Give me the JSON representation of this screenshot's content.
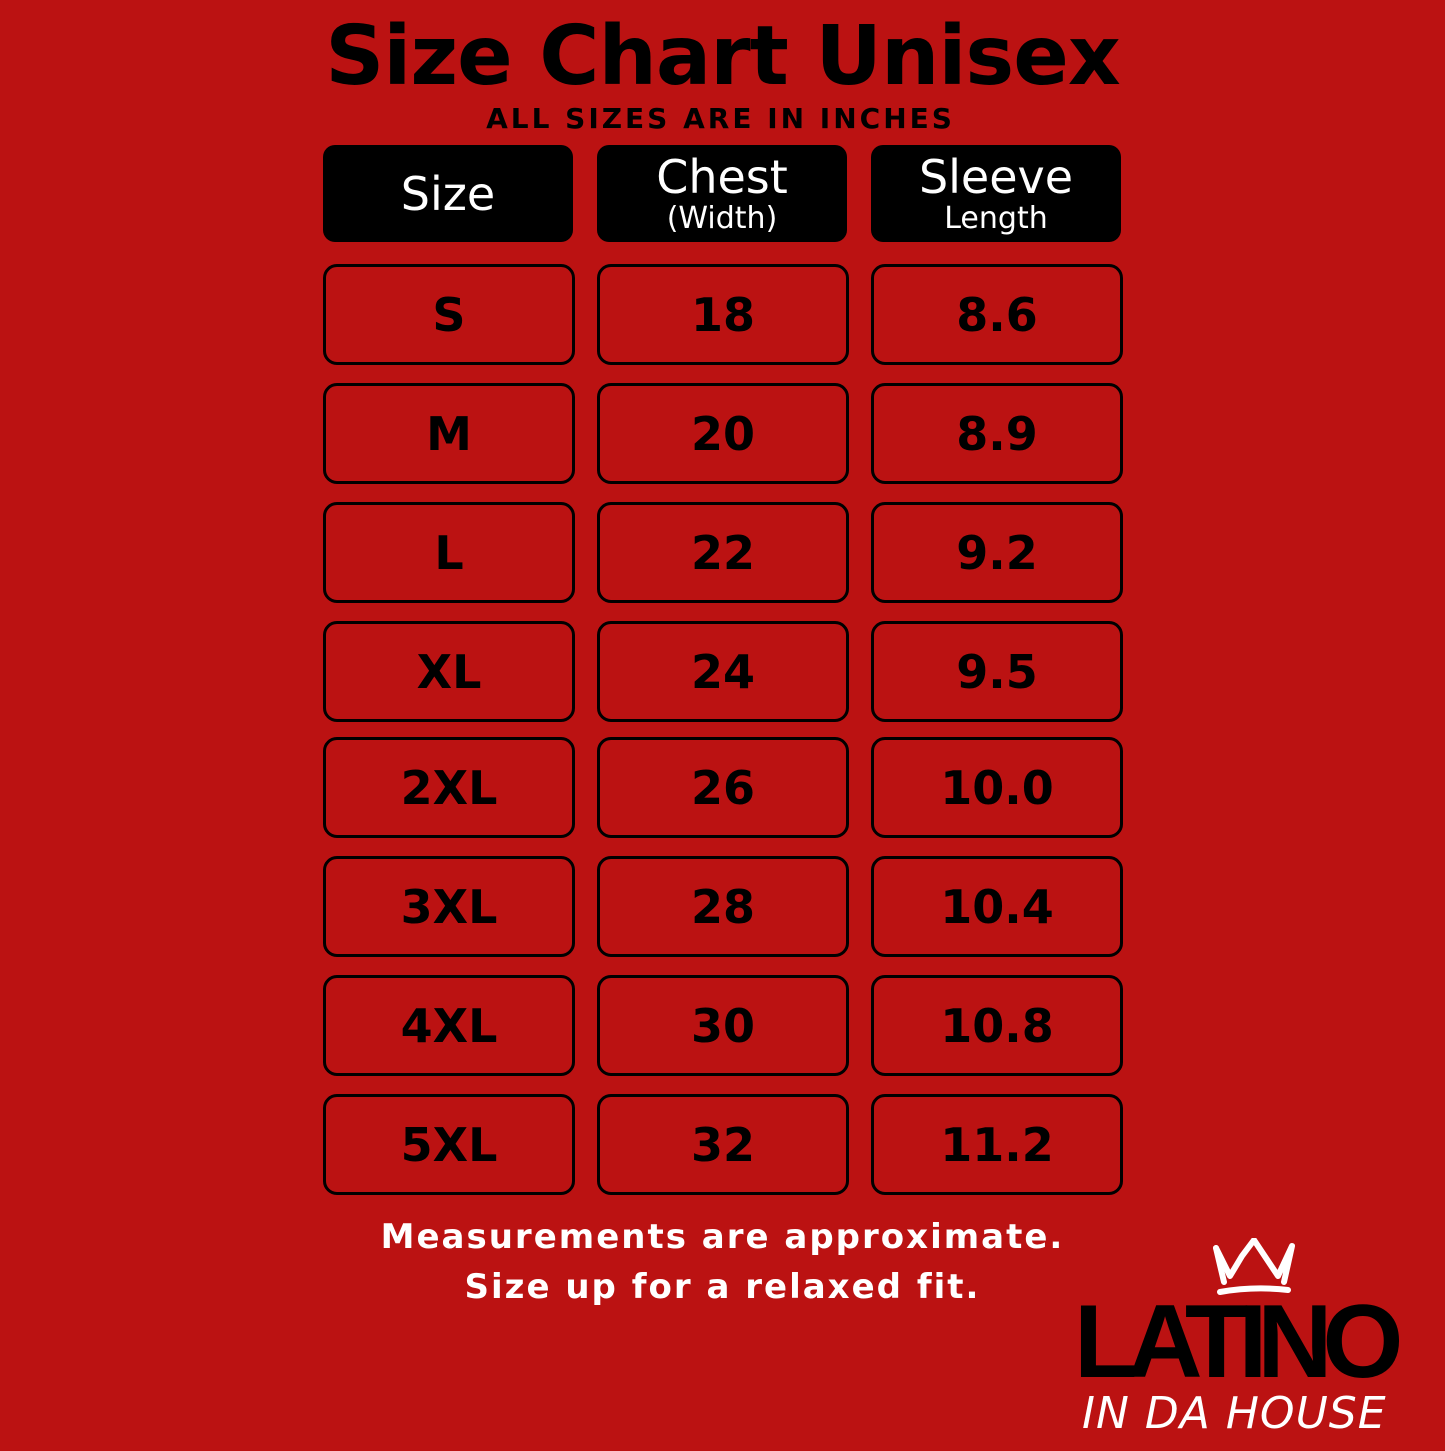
{
  "title": "Size Chart Unisex",
  "subtitle": "ALL SIZES ARE IN INCHES",
  "headers": [
    {
      "main": "Size",
      "sub": ""
    },
    {
      "main": "Chest",
      "sub": "(Width)"
    },
    {
      "main": "Sleeve",
      "sub": "Length"
    }
  ],
  "rows": [
    {
      "size": "S",
      "chest": "18",
      "sleeve": "8.6"
    },
    {
      "size": "M",
      "chest": "20",
      "sleeve": "8.9"
    },
    {
      "size": "L",
      "chest": "22",
      "sleeve": "9.2"
    },
    {
      "size": "XL",
      "chest": "24",
      "sleeve": "9.5"
    },
    {
      "size": "2XL",
      "chest": "26",
      "sleeve": "10.0"
    },
    {
      "size": "3XL",
      "chest": "28",
      "sleeve": "10.4"
    },
    {
      "size": "4XL",
      "chest": "30",
      "sleeve": "10.8"
    },
    {
      "size": "5XL",
      "chest": "32",
      "sleeve": "11.2"
    }
  ],
  "notes": [
    "Measurements are approximate.",
    "Size up for a relaxed fit."
  ],
  "logo": {
    "line1": "LATINO",
    "line2": "IN DA HOUSE",
    "icon": "crown-icon"
  },
  "colors": {
    "background": "#bb1212",
    "header_bg": "#000000",
    "text": "#000000",
    "note_text": "#ffffff"
  }
}
